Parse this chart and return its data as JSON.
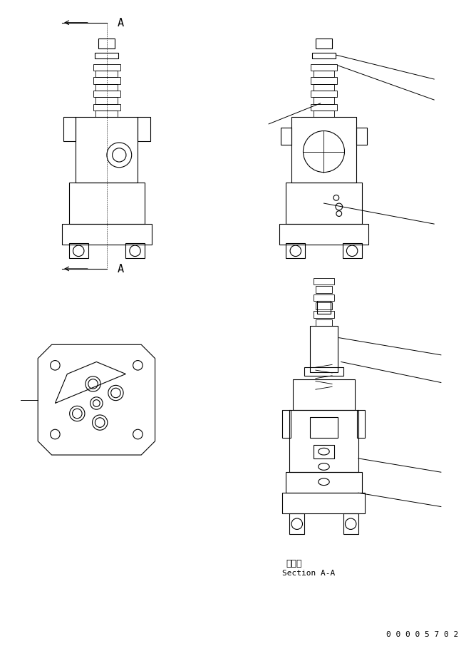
{
  "bg_color": "#ffffff",
  "line_color": "#000000",
  "part_number": "0 0 0 0 5 7 0 2",
  "section_label_jp": "断　面",
  "section_label_en": "Section A-A",
  "arrow_A_label": "A",
  "figsize": [
    6.61,
    9.28
  ],
  "dpi": 100
}
